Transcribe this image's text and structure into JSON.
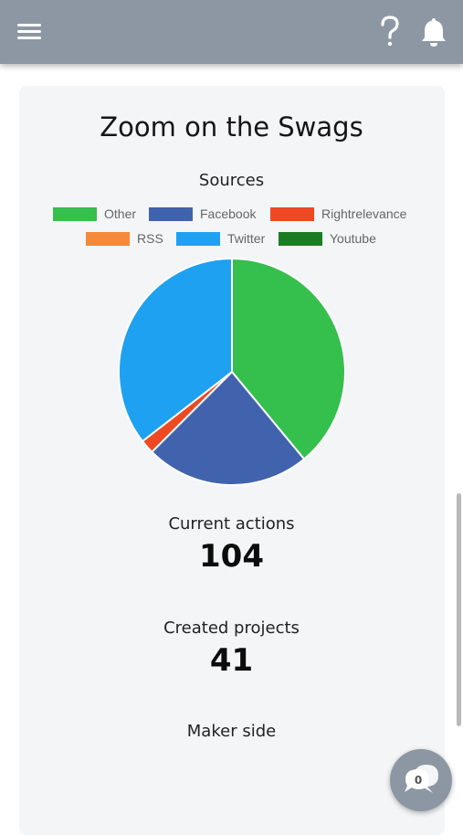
{
  "header": {
    "menu_icon": "hamburger-menu-icon",
    "help_icon": "question-mark-icon",
    "bell_icon": "bell-icon",
    "background": "#8c97a3"
  },
  "card": {
    "title": "Zoom on the Swags"
  },
  "chart_data": {
    "type": "pie",
    "title": "Sources",
    "legend_position": "top",
    "categories": [
      "Other",
      "Facebook",
      "Rightrelevance",
      "RSS",
      "Twitter",
      "Youtube"
    ],
    "values": [
      39,
      23.5,
      2,
      0,
      35.5,
      0
    ],
    "colors": [
      "#35bf4c",
      "#4163ad",
      "#ee4923",
      "#f5893a",
      "#1ea1f0",
      "#1a7d22"
    ]
  },
  "stats": {
    "current_actions_label": "Current actions",
    "current_actions_value": "104",
    "created_projects_label": "Created projects",
    "created_projects_value": "41",
    "maker_side_label": "Maker side"
  },
  "chat": {
    "icon": "chat-bubble-icon",
    "badge_count": "0"
  }
}
